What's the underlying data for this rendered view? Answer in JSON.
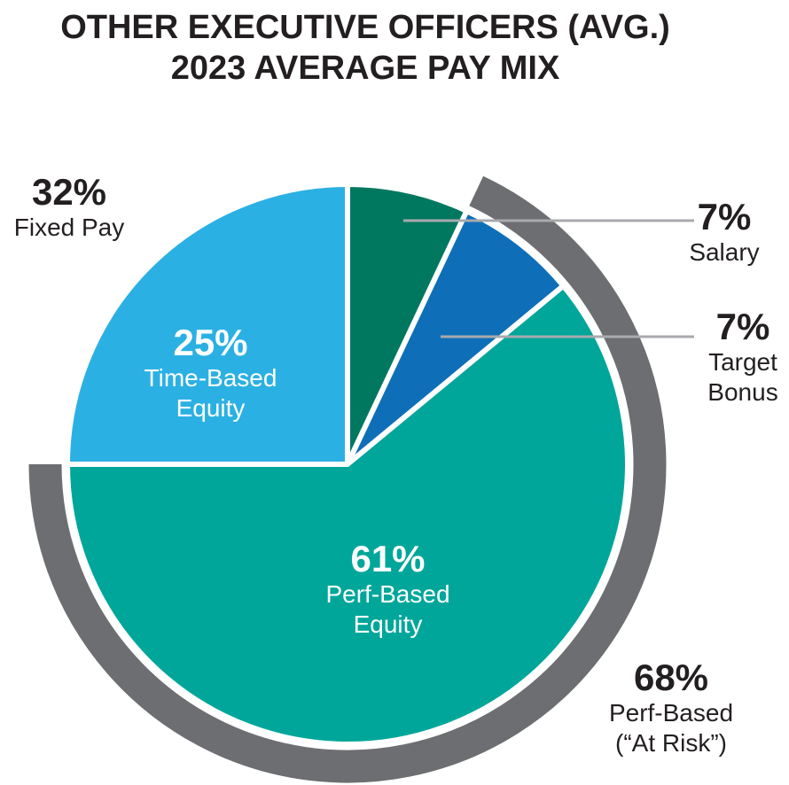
{
  "title": {
    "line1": "OTHER EXECUTIVE OFFICERS (AVG.)",
    "line2": "2023 AVERAGE PAY MIX"
  },
  "chart_data": {
    "type": "pie",
    "title": "OTHER EXECUTIVE OFFICERS (AVG.) 2023 AVERAGE PAY MIX",
    "units": "percent",
    "direction": "clockwise",
    "start_angle_deg": 0,
    "slices": [
      {
        "name": "Salary",
        "value": 7,
        "color": "#00785F"
      },
      {
        "name": "Target Bonus",
        "value": 7,
        "color": "#0E6FB8"
      },
      {
        "name": "Perf-Based Equity",
        "value": 61,
        "color": "#00A69A"
      },
      {
        "name": "Time-Based Equity",
        "value": 25,
        "color": "#2BB0E3"
      }
    ],
    "groups": [
      {
        "name": "Fixed Pay",
        "value": 32,
        "members": [
          "Salary",
          "Time-Based Equity"
        ]
      },
      {
        "name": "Perf-Based (“At Risk”)",
        "value": 68,
        "members": [
          "Target Bonus",
          "Perf-Based Equity"
        ],
        "arc_color": "#6D6E71"
      }
    ],
    "legend_position": "none",
    "grid": false
  },
  "labels": {
    "fixed_pay": {
      "pct": "32%",
      "line1": "Fixed Pay"
    },
    "salary": {
      "pct": "7%",
      "line1": "Salary"
    },
    "target_bonus": {
      "pct": "7%",
      "line1": "Target",
      "line2": "Bonus"
    },
    "at_risk": {
      "pct": "68%",
      "line1": "Perf-Based",
      "line2": "(“At Risk”)"
    },
    "time_based": {
      "pct": "25%",
      "line1": "Time-Based",
      "line2": "Equity"
    },
    "perf_based": {
      "pct": "61%",
      "line1": "Perf-Based",
      "line2": "Equity"
    }
  },
  "style": {
    "text_color": "#231F20",
    "leader_line_color": "#A8AAAD",
    "arc_color": "#6D6E71",
    "slice_gap_color": "#FFFFFF",
    "background": "#FFFFFF"
  }
}
